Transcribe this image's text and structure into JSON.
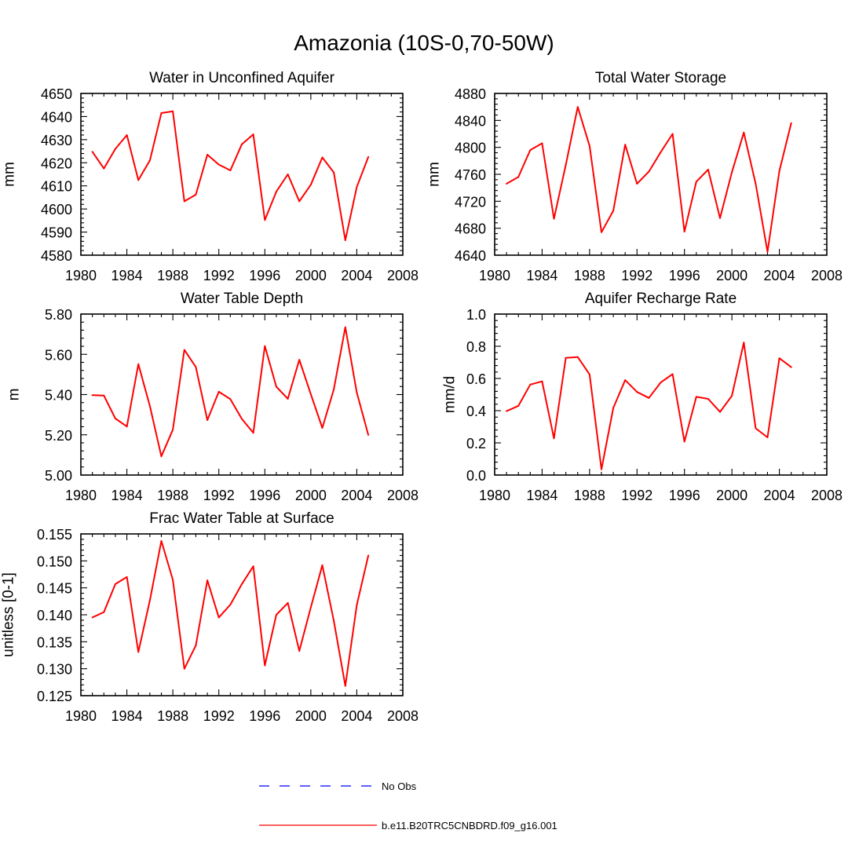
{
  "page_title": "Amazonia (10S-0,70-50W)",
  "colors": {
    "model_line": "#ff0000",
    "obs_line": "#0000ff",
    "axis": "#000000"
  },
  "legend": {
    "obs_label": "No Obs",
    "model_label": "b.e11.B20TRC5CNBDRD.f09_g16.001"
  },
  "chart_data": [
    {
      "type": "line",
      "title": "Water in Unconfined Aquifer",
      "ylabel": "mm",
      "xlim": [
        1980,
        2008
      ],
      "ylim": [
        4580,
        4650
      ],
      "xticks": [
        1980,
        1984,
        1988,
        1992,
        1996,
        2000,
        2004,
        2008
      ],
      "xtick_labels": [
        "1980",
        "1984",
        "1988",
        "1992",
        "1996",
        "2000",
        "2004",
        "2008"
      ],
      "yticks": [
        4580,
        4590,
        4600,
        4610,
        4620,
        4630,
        4640,
        4650
      ],
      "ytick_labels": [
        "4580",
        "4590",
        "4600",
        "4610",
        "4620",
        "4630",
        "4640",
        "4650"
      ],
      "series": [
        {
          "name": "b.e11.B20TRC5CNBDRD.f09_g16.001",
          "x": [
            1981,
            1982,
            1983,
            1984,
            1985,
            1986,
            1987,
            1988,
            1989,
            1990,
            1991,
            1992,
            1993,
            1994,
            1995,
            1996,
            1997,
            1998,
            1999,
            2000,
            2001,
            2002,
            2003,
            2004,
            2005
          ],
          "values": [
            4624.8,
            4617.5,
            4626.0,
            4632.0,
            4612.5,
            4621.0,
            4641.5,
            4642.3,
            4603.3,
            4606.2,
            4623.5,
            4619.2,
            4616.7,
            4628.0,
            4632.3,
            4595.2,
            4607.5,
            4615.0,
            4603.3,
            4610.5,
            4622.3,
            4615.8,
            4586.5,
            4609.5,
            4622.5
          ]
        }
      ]
    },
    {
      "type": "line",
      "title": "Total Water Storage",
      "ylabel": "mm",
      "xlim": [
        1980,
        2008
      ],
      "ylim": [
        4640,
        4880
      ],
      "xticks": [
        1980,
        1984,
        1988,
        1992,
        1996,
        2000,
        2004,
        2008
      ],
      "xtick_labels": [
        "1980",
        "1984",
        "1988",
        "1992",
        "1996",
        "2000",
        "2004",
        "2008"
      ],
      "yticks": [
        4640,
        4680,
        4720,
        4760,
        4800,
        4840,
        4880
      ],
      "ytick_labels": [
        "4640",
        "4680",
        "4720",
        "4760",
        "4800",
        "4840",
        "4880"
      ],
      "series": [
        {
          "name": "b.e11.B20TRC5CNBDRD.f09_g16.001",
          "x": [
            1981,
            1982,
            1983,
            1984,
            1985,
            1986,
            1987,
            1988,
            1989,
            1990,
            1991,
            1992,
            1993,
            1994,
            1995,
            1996,
            1997,
            1998,
            1999,
            2000,
            2001,
            2002,
            2003,
            2004,
            2005
          ],
          "values": [
            4746,
            4756,
            4796,
            4806,
            4694,
            4774,
            4860,
            4802,
            4674,
            4706,
            4804,
            4746,
            4764,
            4793,
            4820,
            4675,
            4749,
            4767,
            4695,
            4763,
            4822,
            4746,
            4645,
            4765,
            4836
          ]
        }
      ]
    },
    {
      "type": "line",
      "title": "Water Table Depth",
      "ylabel": "m",
      "xlim": [
        1980,
        2008
      ],
      "ylim": [
        5.0,
        5.8
      ],
      "xticks": [
        1980,
        1984,
        1988,
        1992,
        1996,
        2000,
        2004,
        2008
      ],
      "xtick_labels": [
        "1980",
        "1984",
        "1988",
        "1992",
        "1996",
        "2000",
        "2004",
        "2008"
      ],
      "yticks": [
        5.0,
        5.2,
        5.4,
        5.6,
        5.8
      ],
      "ytick_labels": [
        "5.00",
        "5.20",
        "5.40",
        "5.60",
        "5.80"
      ],
      "series": [
        {
          "name": "b.e11.B20TRC5CNBDRD.f09_g16.001",
          "x": [
            1981,
            1982,
            1983,
            1984,
            1985,
            1986,
            1987,
            1988,
            1989,
            1990,
            1991,
            1992,
            1993,
            1994,
            1995,
            1996,
            1997,
            1998,
            1999,
            2000,
            2001,
            2002,
            2003,
            2004,
            2005
          ],
          "values": [
            5.397,
            5.395,
            5.281,
            5.241,
            5.551,
            5.343,
            5.093,
            5.225,
            5.622,
            5.537,
            5.273,
            5.414,
            5.377,
            5.279,
            5.21,
            5.641,
            5.439,
            5.379,
            5.573,
            5.401,
            5.234,
            5.425,
            5.735,
            5.41,
            5.199
          ]
        }
      ]
    },
    {
      "type": "line",
      "title": "Aquifer Recharge Rate",
      "ylabel": "mm/d",
      "xlim": [
        1980,
        2008
      ],
      "ylim": [
        0.0,
        1.0
      ],
      "xticks": [
        1980,
        1984,
        1988,
        1992,
        1996,
        2000,
        2004,
        2008
      ],
      "xtick_labels": [
        "1980",
        "1984",
        "1988",
        "1992",
        "1996",
        "2000",
        "2004",
        "2008"
      ],
      "yticks": [
        0.0,
        0.2,
        0.4,
        0.6,
        0.8,
        1.0
      ],
      "ytick_labels": [
        "0.0",
        "0.2",
        "0.4",
        "0.6",
        "0.8",
        "1.0"
      ],
      "series": [
        {
          "name": "b.e11.B20TRC5CNBDRD.f09_g16.001",
          "x": [
            1981,
            1982,
            1983,
            1984,
            1985,
            1986,
            1987,
            1988,
            1989,
            1990,
            1991,
            1992,
            1993,
            1994,
            1995,
            1996,
            1997,
            1998,
            1999,
            2000,
            2001,
            2002,
            2003,
            2004,
            2005
          ],
          "values": [
            0.397,
            0.43,
            0.562,
            0.582,
            0.228,
            0.728,
            0.733,
            0.625,
            0.035,
            0.417,
            0.59,
            0.516,
            0.479,
            0.575,
            0.627,
            0.208,
            0.486,
            0.473,
            0.392,
            0.492,
            0.823,
            0.29,
            0.234,
            0.726,
            0.67
          ]
        }
      ]
    },
    {
      "type": "line",
      "title": "Frac Water Table at Surface",
      "ylabel": "unitless [0-1]",
      "xlim": [
        1980,
        2008
      ],
      "ylim": [
        0.125,
        0.155
      ],
      "xticks": [
        1980,
        1984,
        1988,
        1992,
        1996,
        2000,
        2004,
        2008
      ],
      "xtick_labels": [
        "1980",
        "1984",
        "1988",
        "1992",
        "1996",
        "2000",
        "2004",
        "2008"
      ],
      "yticks": [
        0.125,
        0.13,
        0.135,
        0.14,
        0.145,
        0.15,
        0.155
      ],
      "ytick_labels": [
        "0.125",
        "0.130",
        "0.135",
        "0.140",
        "0.145",
        "0.150",
        "0.155"
      ],
      "series": [
        {
          "name": "b.e11.B20TRC5CNBDRD.f09_g16.001",
          "x": [
            1981,
            1982,
            1983,
            1984,
            1985,
            1986,
            1987,
            1988,
            1989,
            1990,
            1991,
            1992,
            1993,
            1994,
            1995,
            1996,
            1997,
            1998,
            1999,
            2000,
            2001,
            2002,
            2003,
            2004,
            2005
          ],
          "values": [
            0.1395,
            0.1405,
            0.1457,
            0.147,
            0.1331,
            0.1427,
            0.1537,
            0.1465,
            0.13,
            0.1343,
            0.1464,
            0.1395,
            0.1419,
            0.1457,
            0.149,
            0.1306,
            0.14,
            0.1422,
            0.1333,
            0.1414,
            0.1492,
            0.1389,
            0.1268,
            0.1418,
            0.151
          ]
        }
      ]
    }
  ]
}
